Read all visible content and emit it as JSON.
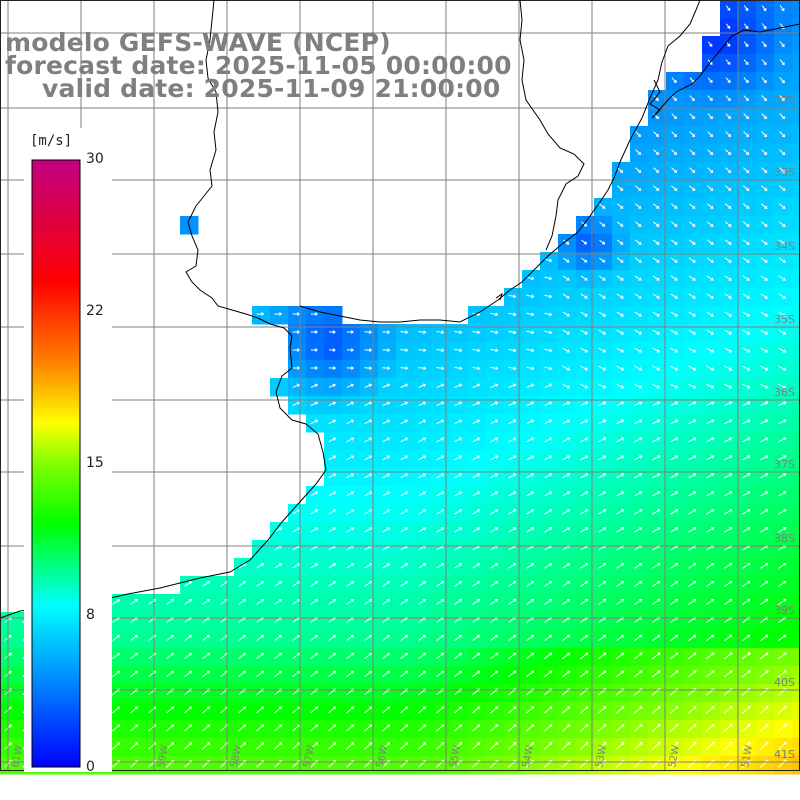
{
  "title": {
    "line1": "modelo GEFS-WAVE (NCEP)",
    "line2": "forecast date: 2025-11-05 00:00:00",
    "line3": "valid date: 2025-11-09 21:00:00"
  },
  "colorbar": {
    "unit": "[m/s]",
    "ticks": [
      "30",
      "22",
      "15",
      "8",
      "0"
    ],
    "tick_values": [
      30,
      22,
      15,
      8,
      0
    ],
    "min": 0,
    "max": 30,
    "stops": [
      {
        "v": 0,
        "c": "#0000ff"
      },
      {
        "v": 4,
        "c": "#0080ff"
      },
      {
        "v": 8,
        "c": "#00ffff"
      },
      {
        "v": 12,
        "c": "#00ff00"
      },
      {
        "v": 15,
        "c": "#80ff00"
      },
      {
        "v": 17,
        "c": "#ffff00"
      },
      {
        "v": 20,
        "c": "#ff8000"
      },
      {
        "v": 24,
        "c": "#ff0000"
      },
      {
        "v": 30,
        "c": "#c00080"
      }
    ]
  },
  "lat_labels": [
    "32S",
    "33S",
    "34S",
    "35S",
    "36S",
    "37S",
    "38S",
    "39S",
    "40S",
    "41S"
  ],
  "lon_labels": [
    "61W",
    "60W",
    "59W",
    "58W",
    "57W",
    "56W",
    "55W",
    "54W",
    "53W",
    "52W",
    "51W"
  ],
  "lon_tick_text": [
    "61W",
    "60W",
    "59W",
    "58W",
    "57W",
    "56W",
    "55W",
    "54W",
    "53W",
    "52W",
    "51W"
  ],
  "colors": {
    "ocean_low": "#0000ff",
    "ocean_high": "#ffa000",
    "land": "#ffffff",
    "coast": "#000000",
    "grid": "#7f7f7f",
    "arrow": "#ffffff"
  }
}
